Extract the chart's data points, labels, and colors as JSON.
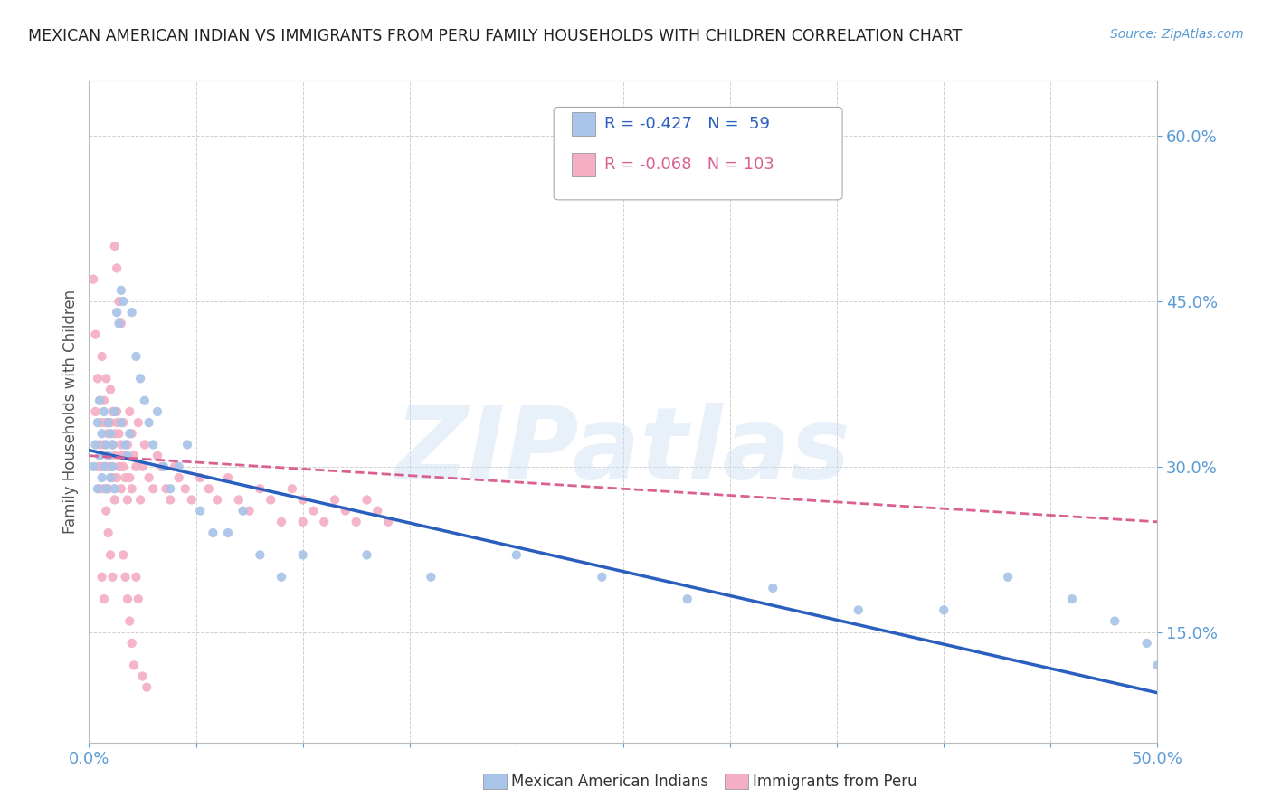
{
  "title": "MEXICAN AMERICAN INDIAN VS IMMIGRANTS FROM PERU FAMILY HOUSEHOLDS WITH CHILDREN CORRELATION CHART",
  "source": "Source: ZipAtlas.com",
  "ylabel": "Family Households with Children",
  "xlim": [
    0.0,
    0.5
  ],
  "ylim": [
    0.05,
    0.65
  ],
  "yticks": [
    0.15,
    0.3,
    0.45,
    0.6
  ],
  "ytick_labels": [
    "15.0%",
    "30.0%",
    "45.0%",
    "60.0%"
  ],
  "xticks": [
    0.0,
    0.05,
    0.1,
    0.15,
    0.2,
    0.25,
    0.3,
    0.35,
    0.4,
    0.45,
    0.5
  ],
  "xtick_labels": [
    "0.0%",
    "",
    "",
    "",
    "",
    "",
    "",
    "",
    "",
    "",
    "50.0%"
  ],
  "blue_R": -0.427,
  "blue_N": 59,
  "pink_R": -0.068,
  "pink_N": 103,
  "blue_color": "#a8c4e8",
  "pink_color": "#f5afc5",
  "blue_line_color": "#2b5fbe",
  "pink_line_color": "#d96090",
  "legend_label_blue": "Mexican American Indians",
  "legend_label_pink": "Immigrants from Peru",
  "watermark": "ZIPatlas",
  "background_color": "#ffffff",
  "grid_color": "#d0d0d0",
  "title_color": "#222222",
  "tick_color": "#5a9bd5",
  "blue_scatter_x": [
    0.002,
    0.003,
    0.004,
    0.004,
    0.005,
    0.005,
    0.006,
    0.006,
    0.007,
    0.007,
    0.008,
    0.008,
    0.009,
    0.009,
    0.01,
    0.01,
    0.011,
    0.011,
    0.012,
    0.012,
    0.013,
    0.014,
    0.015,
    0.015,
    0.016,
    0.017,
    0.018,
    0.019,
    0.02,
    0.022,
    0.024,
    0.026,
    0.028,
    0.03,
    0.032,
    0.035,
    0.038,
    0.042,
    0.046,
    0.052,
    0.058,
    0.065,
    0.072,
    0.08,
    0.09,
    0.1,
    0.13,
    0.16,
    0.2,
    0.24,
    0.28,
    0.32,
    0.36,
    0.4,
    0.43,
    0.46,
    0.48,
    0.495,
    0.5
  ],
  "blue_scatter_y": [
    0.3,
    0.32,
    0.28,
    0.34,
    0.31,
    0.36,
    0.29,
    0.33,
    0.35,
    0.3,
    0.32,
    0.28,
    0.31,
    0.34,
    0.29,
    0.33,
    0.32,
    0.3,
    0.35,
    0.28,
    0.44,
    0.43,
    0.46,
    0.34,
    0.45,
    0.32,
    0.31,
    0.33,
    0.44,
    0.4,
    0.38,
    0.36,
    0.34,
    0.32,
    0.35,
    0.3,
    0.28,
    0.3,
    0.32,
    0.26,
    0.24,
    0.24,
    0.26,
    0.22,
    0.2,
    0.22,
    0.22,
    0.2,
    0.22,
    0.2,
    0.18,
    0.19,
    0.17,
    0.17,
    0.2,
    0.18,
    0.16,
    0.14,
    0.12
  ],
  "pink_scatter_x": [
    0.002,
    0.003,
    0.003,
    0.004,
    0.004,
    0.005,
    0.005,
    0.005,
    0.006,
    0.006,
    0.006,
    0.007,
    0.007,
    0.007,
    0.008,
    0.008,
    0.008,
    0.009,
    0.009,
    0.009,
    0.01,
    0.01,
    0.01,
    0.011,
    0.011,
    0.011,
    0.012,
    0.012,
    0.012,
    0.013,
    0.013,
    0.013,
    0.014,
    0.014,
    0.015,
    0.015,
    0.015,
    0.016,
    0.016,
    0.017,
    0.017,
    0.018,
    0.018,
    0.019,
    0.019,
    0.02,
    0.02,
    0.021,
    0.022,
    0.023,
    0.024,
    0.025,
    0.026,
    0.028,
    0.03,
    0.032,
    0.034,
    0.036,
    0.038,
    0.04,
    0.042,
    0.045,
    0.048,
    0.052,
    0.056,
    0.06,
    0.065,
    0.07,
    0.075,
    0.08,
    0.085,
    0.09,
    0.095,
    0.1,
    0.105,
    0.11,
    0.115,
    0.12,
    0.125,
    0.13,
    0.135,
    0.14,
    0.012,
    0.013,
    0.014,
    0.015,
    0.008,
    0.009,
    0.01,
    0.011,
    0.006,
    0.007,
    0.016,
    0.017,
    0.018,
    0.019,
    0.02,
    0.021,
    0.022,
    0.023,
    0.025,
    0.027,
    0.1
  ],
  "pink_scatter_y": [
    0.47,
    0.35,
    0.42,
    0.3,
    0.38,
    0.32,
    0.36,
    0.28,
    0.34,
    0.4,
    0.3,
    0.32,
    0.36,
    0.28,
    0.34,
    0.3,
    0.38,
    0.31,
    0.28,
    0.33,
    0.37,
    0.3,
    0.34,
    0.29,
    0.32,
    0.35,
    0.31,
    0.27,
    0.33,
    0.35,
    0.29,
    0.34,
    0.3,
    0.33,
    0.31,
    0.28,
    0.32,
    0.3,
    0.34,
    0.29,
    0.31,
    0.27,
    0.32,
    0.35,
    0.29,
    0.33,
    0.28,
    0.31,
    0.3,
    0.34,
    0.27,
    0.3,
    0.32,
    0.29,
    0.28,
    0.31,
    0.3,
    0.28,
    0.27,
    0.3,
    0.29,
    0.28,
    0.27,
    0.29,
    0.28,
    0.27,
    0.29,
    0.27,
    0.26,
    0.28,
    0.27,
    0.25,
    0.28,
    0.27,
    0.26,
    0.25,
    0.27,
    0.26,
    0.25,
    0.27,
    0.26,
    0.25,
    0.5,
    0.48,
    0.45,
    0.43,
    0.26,
    0.24,
    0.22,
    0.2,
    0.2,
    0.18,
    0.22,
    0.2,
    0.18,
    0.16,
    0.14,
    0.12,
    0.2,
    0.18,
    0.11,
    0.1,
    0.25
  ],
  "blue_line_x0": 0.0,
  "blue_line_x1": 0.5,
  "blue_line_y0": 0.315,
  "blue_line_y1": 0.095,
  "pink_line_x0": 0.0,
  "pink_line_x1": 0.5,
  "pink_line_y0": 0.31,
  "pink_line_y1": 0.25
}
